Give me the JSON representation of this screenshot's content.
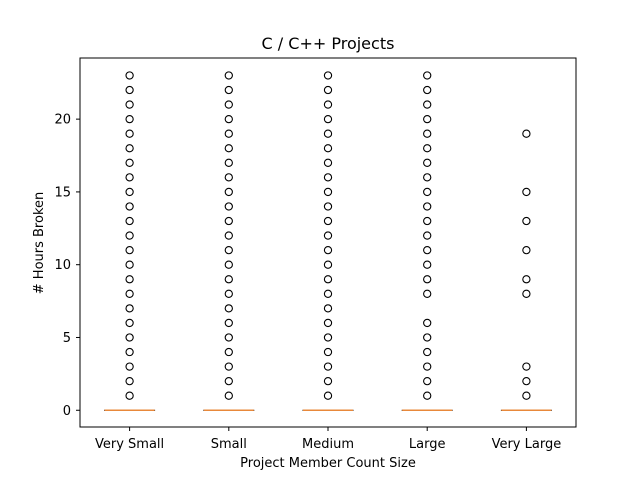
{
  "chart_data": {
    "type": "box",
    "title": "C / C++ Projects",
    "xlabel": "Project Member Count Size",
    "ylabel": "# Hours Broken",
    "categories": [
      "Very Small",
      "Small",
      "Medium",
      "Large",
      "Very Large"
    ],
    "ylim": [
      -1.15,
      24.2
    ],
    "yticks": [
      0,
      5,
      10,
      15,
      20
    ],
    "grid": false,
    "boxes": [
      {
        "category": "Very Small",
        "q1": 0,
        "median": 0,
        "q3": 0,
        "whisker_low": 0,
        "whisker_high": 0,
        "fliers": [
          1,
          2,
          3,
          4,
          5,
          6,
          7,
          8,
          9,
          10,
          11,
          12,
          13,
          14,
          15,
          16,
          17,
          18,
          19,
          20,
          21,
          22,
          23
        ]
      },
      {
        "category": "Small",
        "q1": 0,
        "median": 0,
        "q3": 0,
        "whisker_low": 0,
        "whisker_high": 0,
        "fliers": [
          1,
          2,
          3,
          4,
          5,
          6,
          7,
          8,
          9,
          10,
          11,
          12,
          13,
          14,
          15,
          16,
          17,
          18,
          19,
          20,
          21,
          22,
          23
        ]
      },
      {
        "category": "Medium",
        "q1": 0,
        "median": 0,
        "q3": 0,
        "whisker_low": 0,
        "whisker_high": 0,
        "fliers": [
          1,
          2,
          3,
          4,
          5,
          6,
          7,
          8,
          9,
          10,
          11,
          12,
          13,
          14,
          15,
          16,
          17,
          18,
          19,
          20,
          21,
          22,
          23
        ]
      },
      {
        "category": "Large",
        "q1": 0,
        "median": 0,
        "q3": 0,
        "whisker_low": 0,
        "whisker_high": 0,
        "fliers": [
          1,
          2,
          3,
          4,
          5,
          6,
          8,
          9,
          10,
          11,
          12,
          13,
          14,
          15,
          16,
          17,
          18,
          19,
          20,
          21,
          22,
          23
        ]
      },
      {
        "category": "Very Large",
        "q1": 0,
        "median": 0,
        "q3": 0,
        "whisker_low": 0,
        "whisker_high": 0,
        "fliers": [
          1,
          2,
          3,
          8,
          9,
          11,
          13,
          15,
          19
        ]
      }
    ],
    "colors": {
      "median": "#e8883a",
      "flier": "#000000"
    }
  }
}
